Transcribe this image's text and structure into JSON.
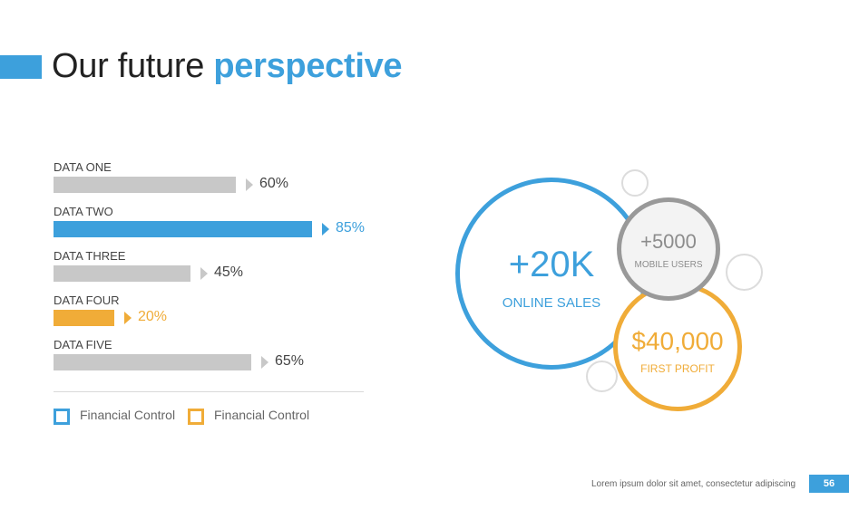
{
  "title": {
    "main": "Our future ",
    "accent": "perspective"
  },
  "chart_data": {
    "type": "bar",
    "categories": [
      "DATA ONE",
      "DATA TWO",
      "DATA THREE",
      "DATA FOUR",
      "DATA FIVE"
    ],
    "values": [
      60,
      85,
      45,
      20,
      65
    ],
    "value_labels": [
      "60%",
      "85%",
      "45%",
      "20%",
      "65%"
    ],
    "bar_colors": [
      "#c8c8c8",
      "#3da0dc",
      "#c8c8c8",
      "#f0ac38",
      "#c8c8c8"
    ],
    "label_colors": [
      "#444444",
      "#3da0dc",
      "#444444",
      "#f0ac38",
      "#444444"
    ],
    "xlim": [
      0,
      100
    ]
  },
  "legend": [
    {
      "label": "Financial Control",
      "color": "#3da0dc"
    },
    {
      "label": "Financial Control",
      "color": "#f0ac38"
    }
  ],
  "stats": {
    "online_sales": {
      "value": "+20K",
      "label": "ONLINE SALES",
      "color": "#3da0dc"
    },
    "mobile_users": {
      "value": "+5000",
      "label": "MOBILE USERS",
      "color": "#8c8c8c"
    },
    "first_profit": {
      "value": "$40,000",
      "label": "FIRST PROFIT",
      "color": "#f0ac38"
    }
  },
  "footer": {
    "text": "Lorem ipsum dolor sit amet, consectetur adipiscing",
    "page": "56"
  }
}
